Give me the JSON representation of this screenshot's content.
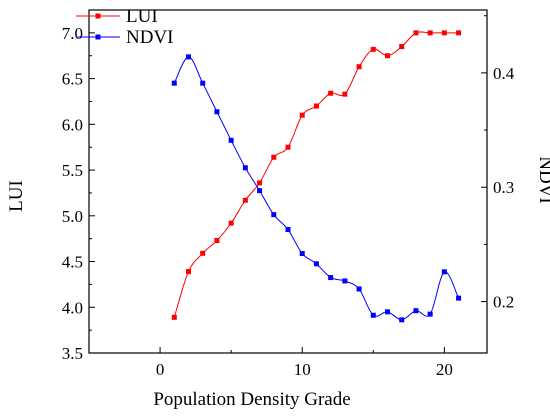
{
  "chart_data": {
    "type": "line",
    "title": "",
    "xlabel": "Population Density Grade",
    "ylabel_left": "LUI",
    "ylabel_right": "NDVI",
    "xlim": [
      -5,
      23
    ],
    "ylim_left": [
      3.5,
      7.25
    ],
    "ylim_right": [
      0.155,
      0.455
    ],
    "x_ticks": [
      0,
      10,
      20
    ],
    "y_left_ticks": [
      "3.5",
      "4.0",
      "4.5",
      "5.0",
      "5.5",
      "6.0",
      "6.5",
      "7.0"
    ],
    "y_right_ticks": [
      "0.2",
      "0.3",
      "0.4"
    ],
    "grid": false,
    "legend_position": "top-left",
    "series": [
      {
        "name": "LUI",
        "axis": "left",
        "color": "#ff0000",
        "x": [
          1,
          2,
          3,
          4,
          5,
          6,
          7,
          8,
          9,
          10,
          11,
          12,
          13,
          14,
          15,
          16,
          17,
          18,
          19,
          20,
          21
        ],
        "y": [
          3.89,
          4.39,
          4.59,
          4.73,
          4.92,
          5.17,
          5.36,
          5.64,
          5.75,
          6.1,
          6.2,
          6.34,
          6.33,
          6.63,
          6.82,
          6.75,
          6.85,
          7.0,
          7.0,
          7.0,
          7.0
        ]
      },
      {
        "name": "NDVI",
        "axis": "right",
        "color": "#0000ff",
        "x": [
          1,
          2,
          3,
          4,
          5,
          6,
          7,
          8,
          9,
          10,
          11,
          12,
          13,
          14,
          15,
          16,
          17,
          18,
          19,
          20,
          21
        ],
        "y": [
          0.391,
          0.414,
          0.391,
          0.366,
          0.341,
          0.317,
          0.297,
          0.276,
          0.263,
          0.242,
          0.233,
          0.221,
          0.218,
          0.211,
          0.188,
          0.191,
          0.184,
          0.192,
          0.189,
          0.226,
          0.203
        ]
      }
    ]
  }
}
